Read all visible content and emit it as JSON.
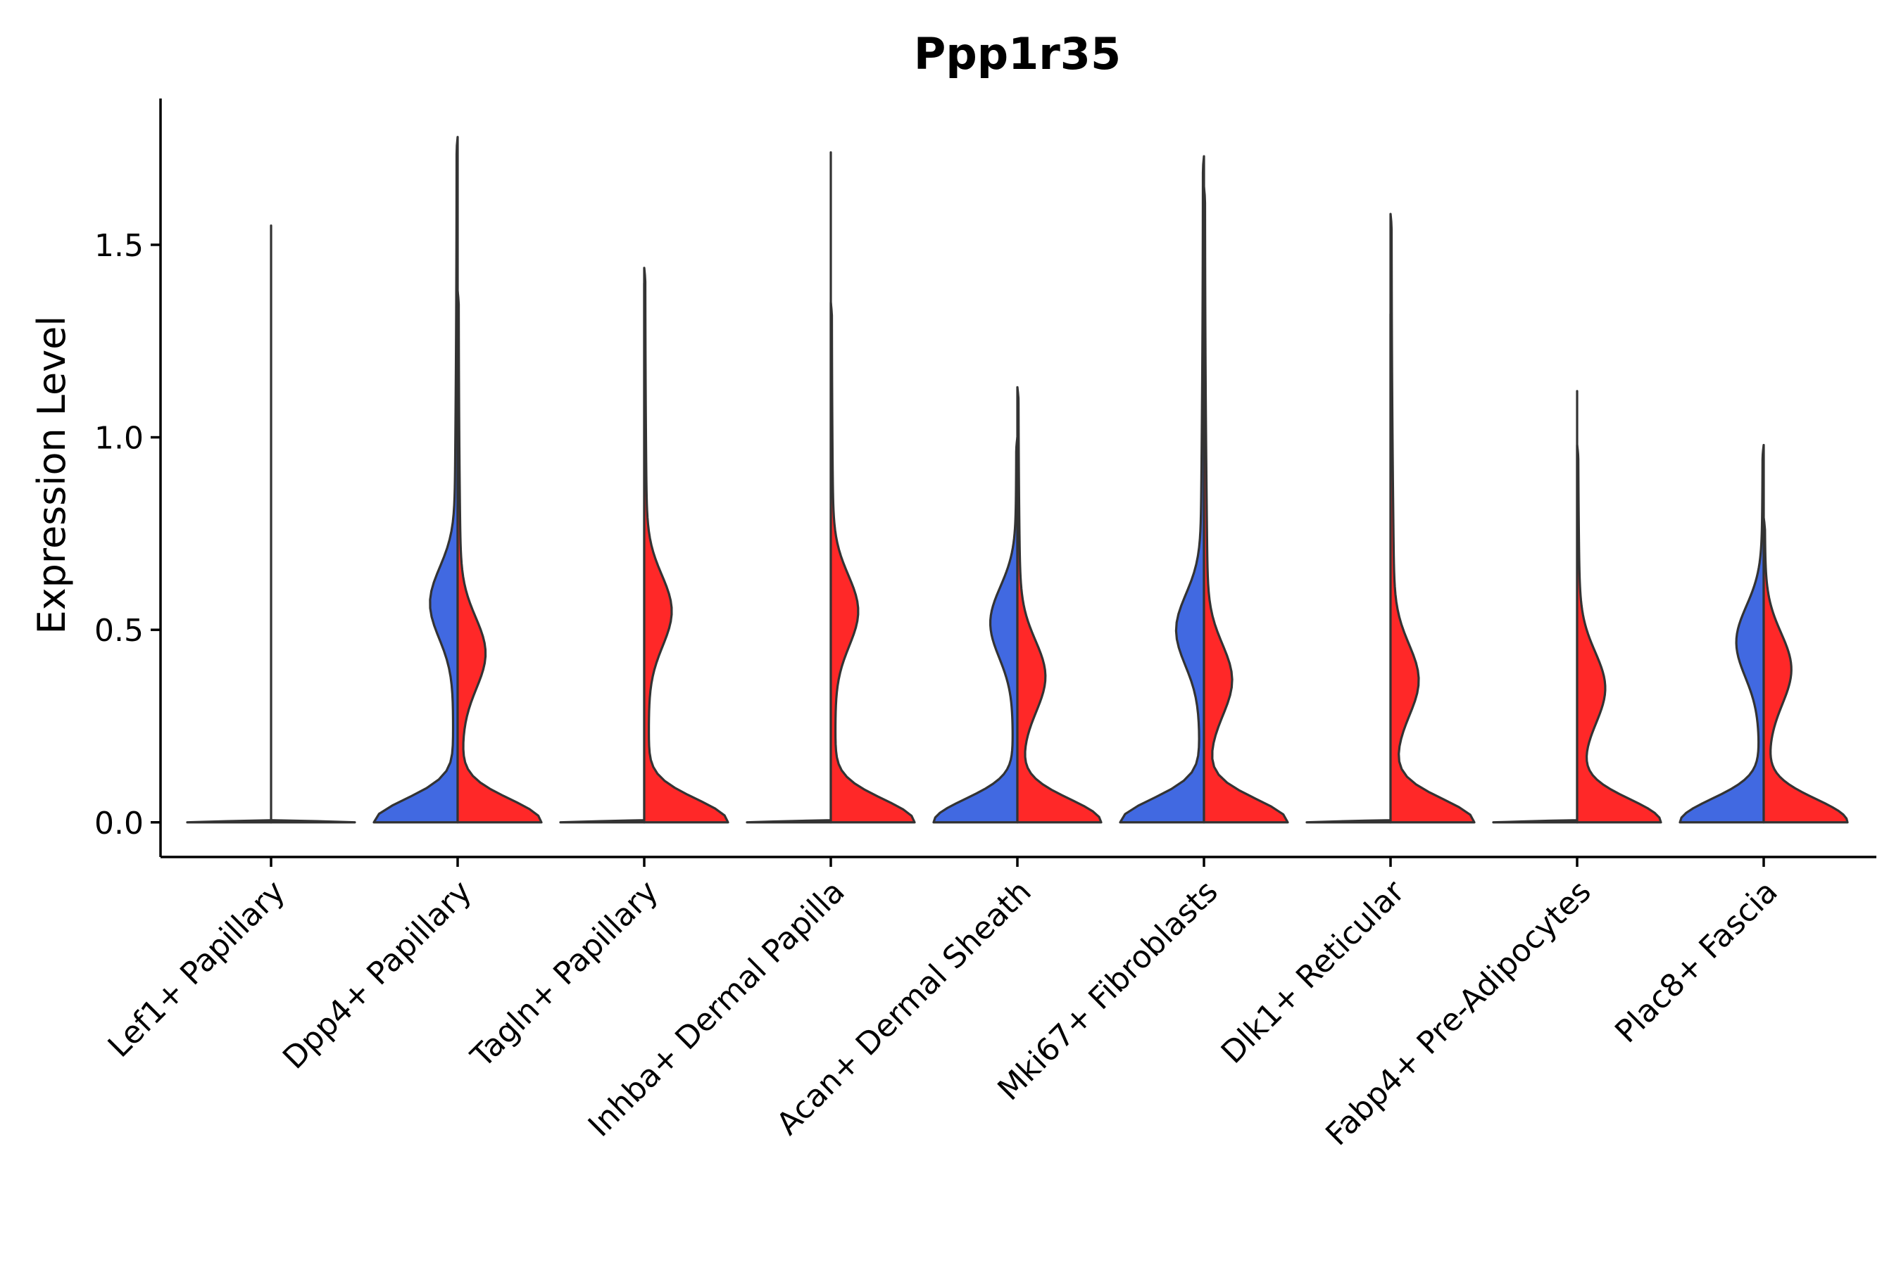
{
  "chart_data": {
    "type": "violin",
    "title": "Ppp1r35",
    "xlabel": "",
    "ylabel": "Expression Level",
    "ylim": [
      -0.09,
      1.88
    ],
    "yticks": [
      0.0,
      0.5,
      1.0,
      1.5
    ],
    "ytick_labels": [
      "0.0",
      "0.5",
      "1.0",
      "1.5"
    ],
    "legend": "none",
    "grid": false,
    "colors": {
      "blue": "#4169E1",
      "red": "#FF2828",
      "outline": "#333333"
    },
    "categories": [
      "Lef1+ Papillary",
      "Dpp4+ Papillary",
      "Tagln+ Papillary",
      "Inhba+ Dermal Papilla",
      "Acan+ Dermal Sheath",
      "Mki67+ Fibroblasts",
      "Dlk1+ Reticular",
      "Fabp4+ Pre-Adipocytes",
      "Plac8+ Fascia"
    ],
    "split_series": [
      {
        "name": "blue",
        "max": [
          1.55,
          1.78,
          1.4,
          1.74,
          1.0,
          1.73,
          1.32,
          1.12,
          0.98
        ],
        "mode": [
          0.0,
          0.57,
          0.0,
          0.0,
          0.52,
          0.5,
          0.0,
          0.0,
          0.47
        ],
        "zero_only": [
          true,
          false,
          true,
          true,
          false,
          false,
          true,
          true,
          false
        ]
      },
      {
        "name": "red",
        "max": [
          null,
          1.38,
          1.44,
          1.35,
          1.13,
          1.65,
          1.58,
          0.98,
          0.79
        ],
        "mode": [
          null,
          0.44,
          0.55,
          0.55,
          0.38,
          0.37,
          0.37,
          0.35,
          0.4
        ],
        "zero_only": [
          false,
          false,
          false,
          false,
          false,
          false,
          false,
          false,
          false
        ]
      }
    ]
  }
}
